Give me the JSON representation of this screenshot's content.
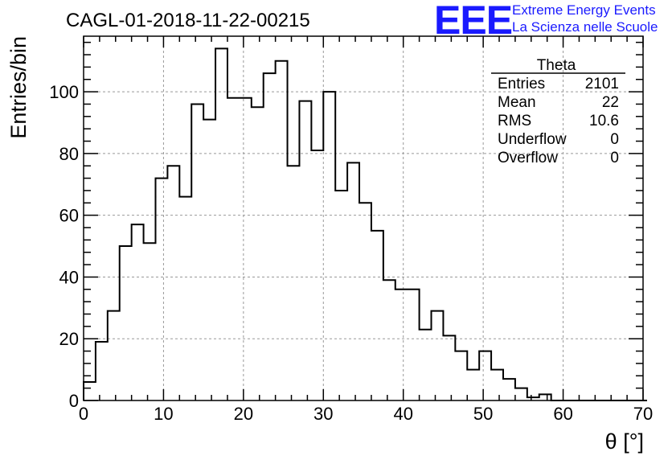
{
  "title": "CAGL-01-2018-11-22-00215",
  "logo": {
    "mark": "EEE",
    "line1": "Extreme Energy Events",
    "line2": "La Scienza nelle Scuole",
    "color": "#1a1aff"
  },
  "stats": {
    "name": "Theta",
    "rows": [
      {
        "label": "Entries",
        "value": "2101"
      },
      {
        "label": "Mean",
        "value": "22"
      },
      {
        "label": "RMS",
        "value": "10.6"
      },
      {
        "label": "Underflow",
        "value": "0"
      },
      {
        "label": "Overflow",
        "value": "0"
      }
    ]
  },
  "chart_data": {
    "type": "bar",
    "style": "step-histogram",
    "xlabel": "θ [°]",
    "ylabel": "Entries/bin",
    "xlim": [
      0,
      70
    ],
    "ylim": [
      0,
      118
    ],
    "xticks": [
      0,
      10,
      20,
      30,
      40,
      50,
      60,
      70
    ],
    "yticks": [
      0,
      20,
      40,
      60,
      80,
      100
    ],
    "grid": true,
    "bin_width": 1.5,
    "values": [
      6,
      19,
      29,
      50,
      57,
      51,
      72,
      76,
      66,
      96,
      91,
      114,
      98,
      98,
      95,
      106,
      110,
      76,
      97,
      81,
      100,
      68,
      77,
      64,
      55,
      39,
      36,
      36,
      23,
      29,
      21,
      16,
      10,
      16,
      10,
      7,
      4,
      1,
      2,
      0,
      0,
      0,
      0,
      0,
      0,
      0,
      0
    ]
  }
}
